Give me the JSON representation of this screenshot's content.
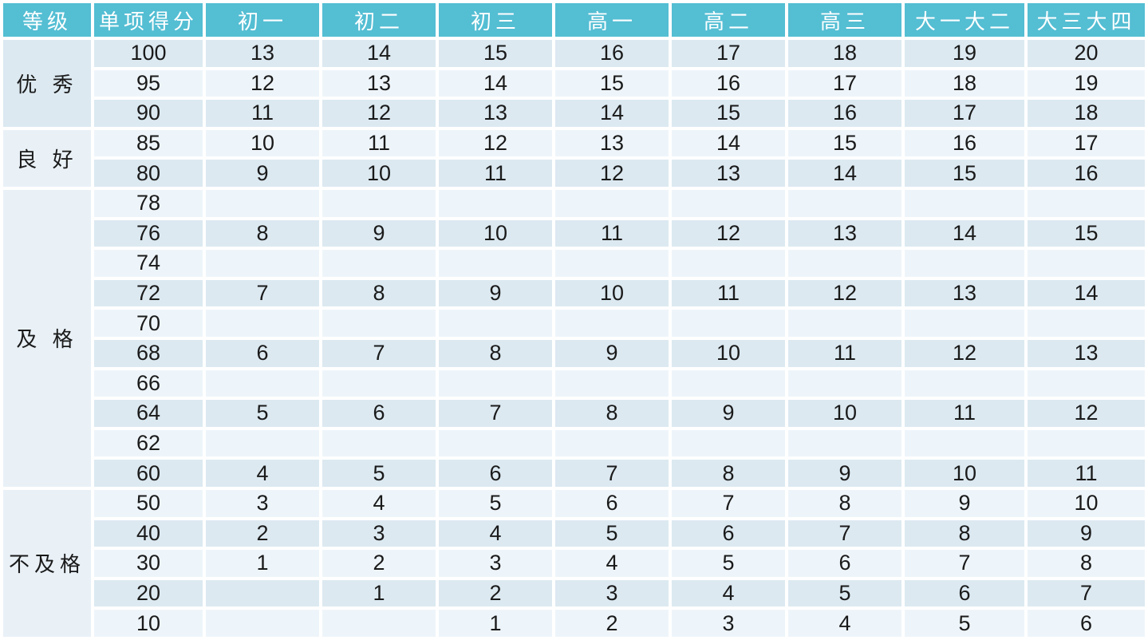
{
  "colors": {
    "header_bg": "#54BED3",
    "header_text": "#FFFFFF",
    "row_dark": "#DCE9F1",
    "row_light": "#EEF5FA",
    "grade_cell_dark": "#DCE9F1",
    "grade_cell_light": "#E9F1F7",
    "text": "#1A1A1A",
    "background": "#FFFFFF"
  },
  "table": {
    "headers": [
      "等级",
      "单项得分",
      "初一",
      "初二",
      "初三",
      "高一",
      "高二",
      "高三",
      "大一大二",
      "大三大四"
    ],
    "sections": [
      {
        "grade": "优 秀",
        "rows": [
          {
            "score": "100",
            "values": [
              "13",
              "14",
              "15",
              "16",
              "17",
              "18",
              "19",
              "20"
            ]
          },
          {
            "score": "95",
            "values": [
              "12",
              "13",
              "14",
              "15",
              "16",
              "17",
              "18",
              "19"
            ]
          },
          {
            "score": "90",
            "values": [
              "11",
              "12",
              "13",
              "14",
              "15",
              "16",
              "17",
              "18"
            ]
          }
        ]
      },
      {
        "grade": "良 好",
        "rows": [
          {
            "score": "85",
            "values": [
              "10",
              "11",
              "12",
              "13",
              "14",
              "15",
              "16",
              "17"
            ]
          },
          {
            "score": "80",
            "values": [
              "9",
              "10",
              "11",
              "12",
              "13",
              "14",
              "15",
              "16"
            ]
          }
        ]
      },
      {
        "grade": "及 格",
        "rows": [
          {
            "score": "78",
            "values": [
              "",
              "",
              "",
              "",
              "",
              "",
              "",
              ""
            ]
          },
          {
            "score": "76",
            "values": [
              "8",
              "9",
              "10",
              "11",
              "12",
              "13",
              "14",
              "15"
            ]
          },
          {
            "score": "74",
            "values": [
              "",
              "",
              "",
              "",
              "",
              "",
              "",
              ""
            ]
          },
          {
            "score": "72",
            "values": [
              "7",
              "8",
              "9",
              "10",
              "11",
              "12",
              "13",
              "14"
            ]
          },
          {
            "score": "70",
            "values": [
              "",
              "",
              "",
              "",
              "",
              "",
              "",
              ""
            ]
          },
          {
            "score": "68",
            "values": [
              "6",
              "7",
              "8",
              "9",
              "10",
              "11",
              "12",
              "13"
            ]
          },
          {
            "score": "66",
            "values": [
              "",
              "",
              "",
              "",
              "",
              "",
              "",
              ""
            ]
          },
          {
            "score": "64",
            "values": [
              "5",
              "6",
              "7",
              "8",
              "9",
              "10",
              "11",
              "12"
            ]
          },
          {
            "score": "62",
            "values": [
              "",
              "",
              "",
              "",
              "",
              "",
              "",
              ""
            ]
          },
          {
            "score": "60",
            "values": [
              "4",
              "5",
              "6",
              "7",
              "8",
              "9",
              "10",
              "11"
            ]
          }
        ]
      },
      {
        "grade": "不及格",
        "rows": [
          {
            "score": "50",
            "values": [
              "3",
              "4",
              "5",
              "6",
              "7",
              "8",
              "9",
              "10"
            ]
          },
          {
            "score": "40",
            "values": [
              "2",
              "3",
              "4",
              "5",
              "6",
              "7",
              "8",
              "9"
            ]
          },
          {
            "score": "30",
            "values": [
              "1",
              "2",
              "3",
              "4",
              "5",
              "6",
              "7",
              "8"
            ]
          },
          {
            "score": "20",
            "values": [
              "",
              "1",
              "2",
              "3",
              "4",
              "5",
              "6",
              "7"
            ]
          },
          {
            "score": "10",
            "values": [
              "",
              "",
              "1",
              "2",
              "3",
              "4",
              "5",
              "6"
            ]
          }
        ]
      }
    ]
  }
}
